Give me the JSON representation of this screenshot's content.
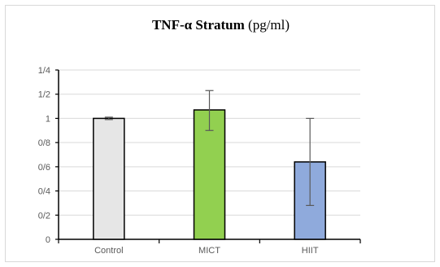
{
  "chart_data": {
    "type": "bar",
    "title_main": "TNF-α Stratum",
    "title_unit": "(pg/ml)",
    "categories": [
      "Control",
      "MICT",
      "HIIT"
    ],
    "values": [
      1.0,
      1.07,
      0.64
    ],
    "error_low": [
      0.99,
      0.9,
      0.28
    ],
    "error_high": [
      1.01,
      1.23,
      1.0
    ],
    "colors": [
      "#e6e6e6",
      "#92d050",
      "#8faadc"
    ],
    "y_ticks": [
      0,
      0.2,
      0.4,
      0.6,
      0.8,
      1.0,
      1.2,
      1.4
    ],
    "y_tick_labels": [
      "0",
      "0/2",
      "0/4",
      "0/6",
      "0/8",
      "1",
      "1/2",
      "1/4"
    ],
    "ylim": [
      0,
      1.4
    ],
    "grid": true,
    "legend": "none"
  }
}
